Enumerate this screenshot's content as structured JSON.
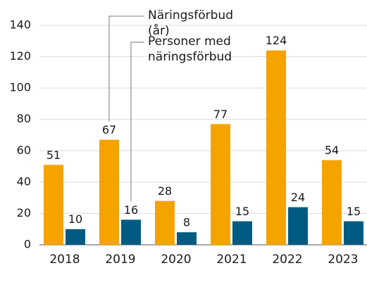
{
  "chart_data": {
    "type": "bar",
    "categories": [
      "2018",
      "2019",
      "2020",
      "2021",
      "2022",
      "2023"
    ],
    "series": [
      {
        "name": "Näringsförbud (år)",
        "color": "#f5a300",
        "values": [
          51,
          67,
          28,
          77,
          124,
          54
        ]
      },
      {
        "name": "Personer med näringsförbud",
        "color": "#005b82",
        "values": [
          10,
          16,
          8,
          15,
          24,
          15
        ]
      }
    ],
    "ylim": [
      0,
      140
    ],
    "yticks": [
      0,
      20,
      40,
      60,
      80,
      100,
      120,
      140
    ],
    "grid": true,
    "legend": "top"
  }
}
